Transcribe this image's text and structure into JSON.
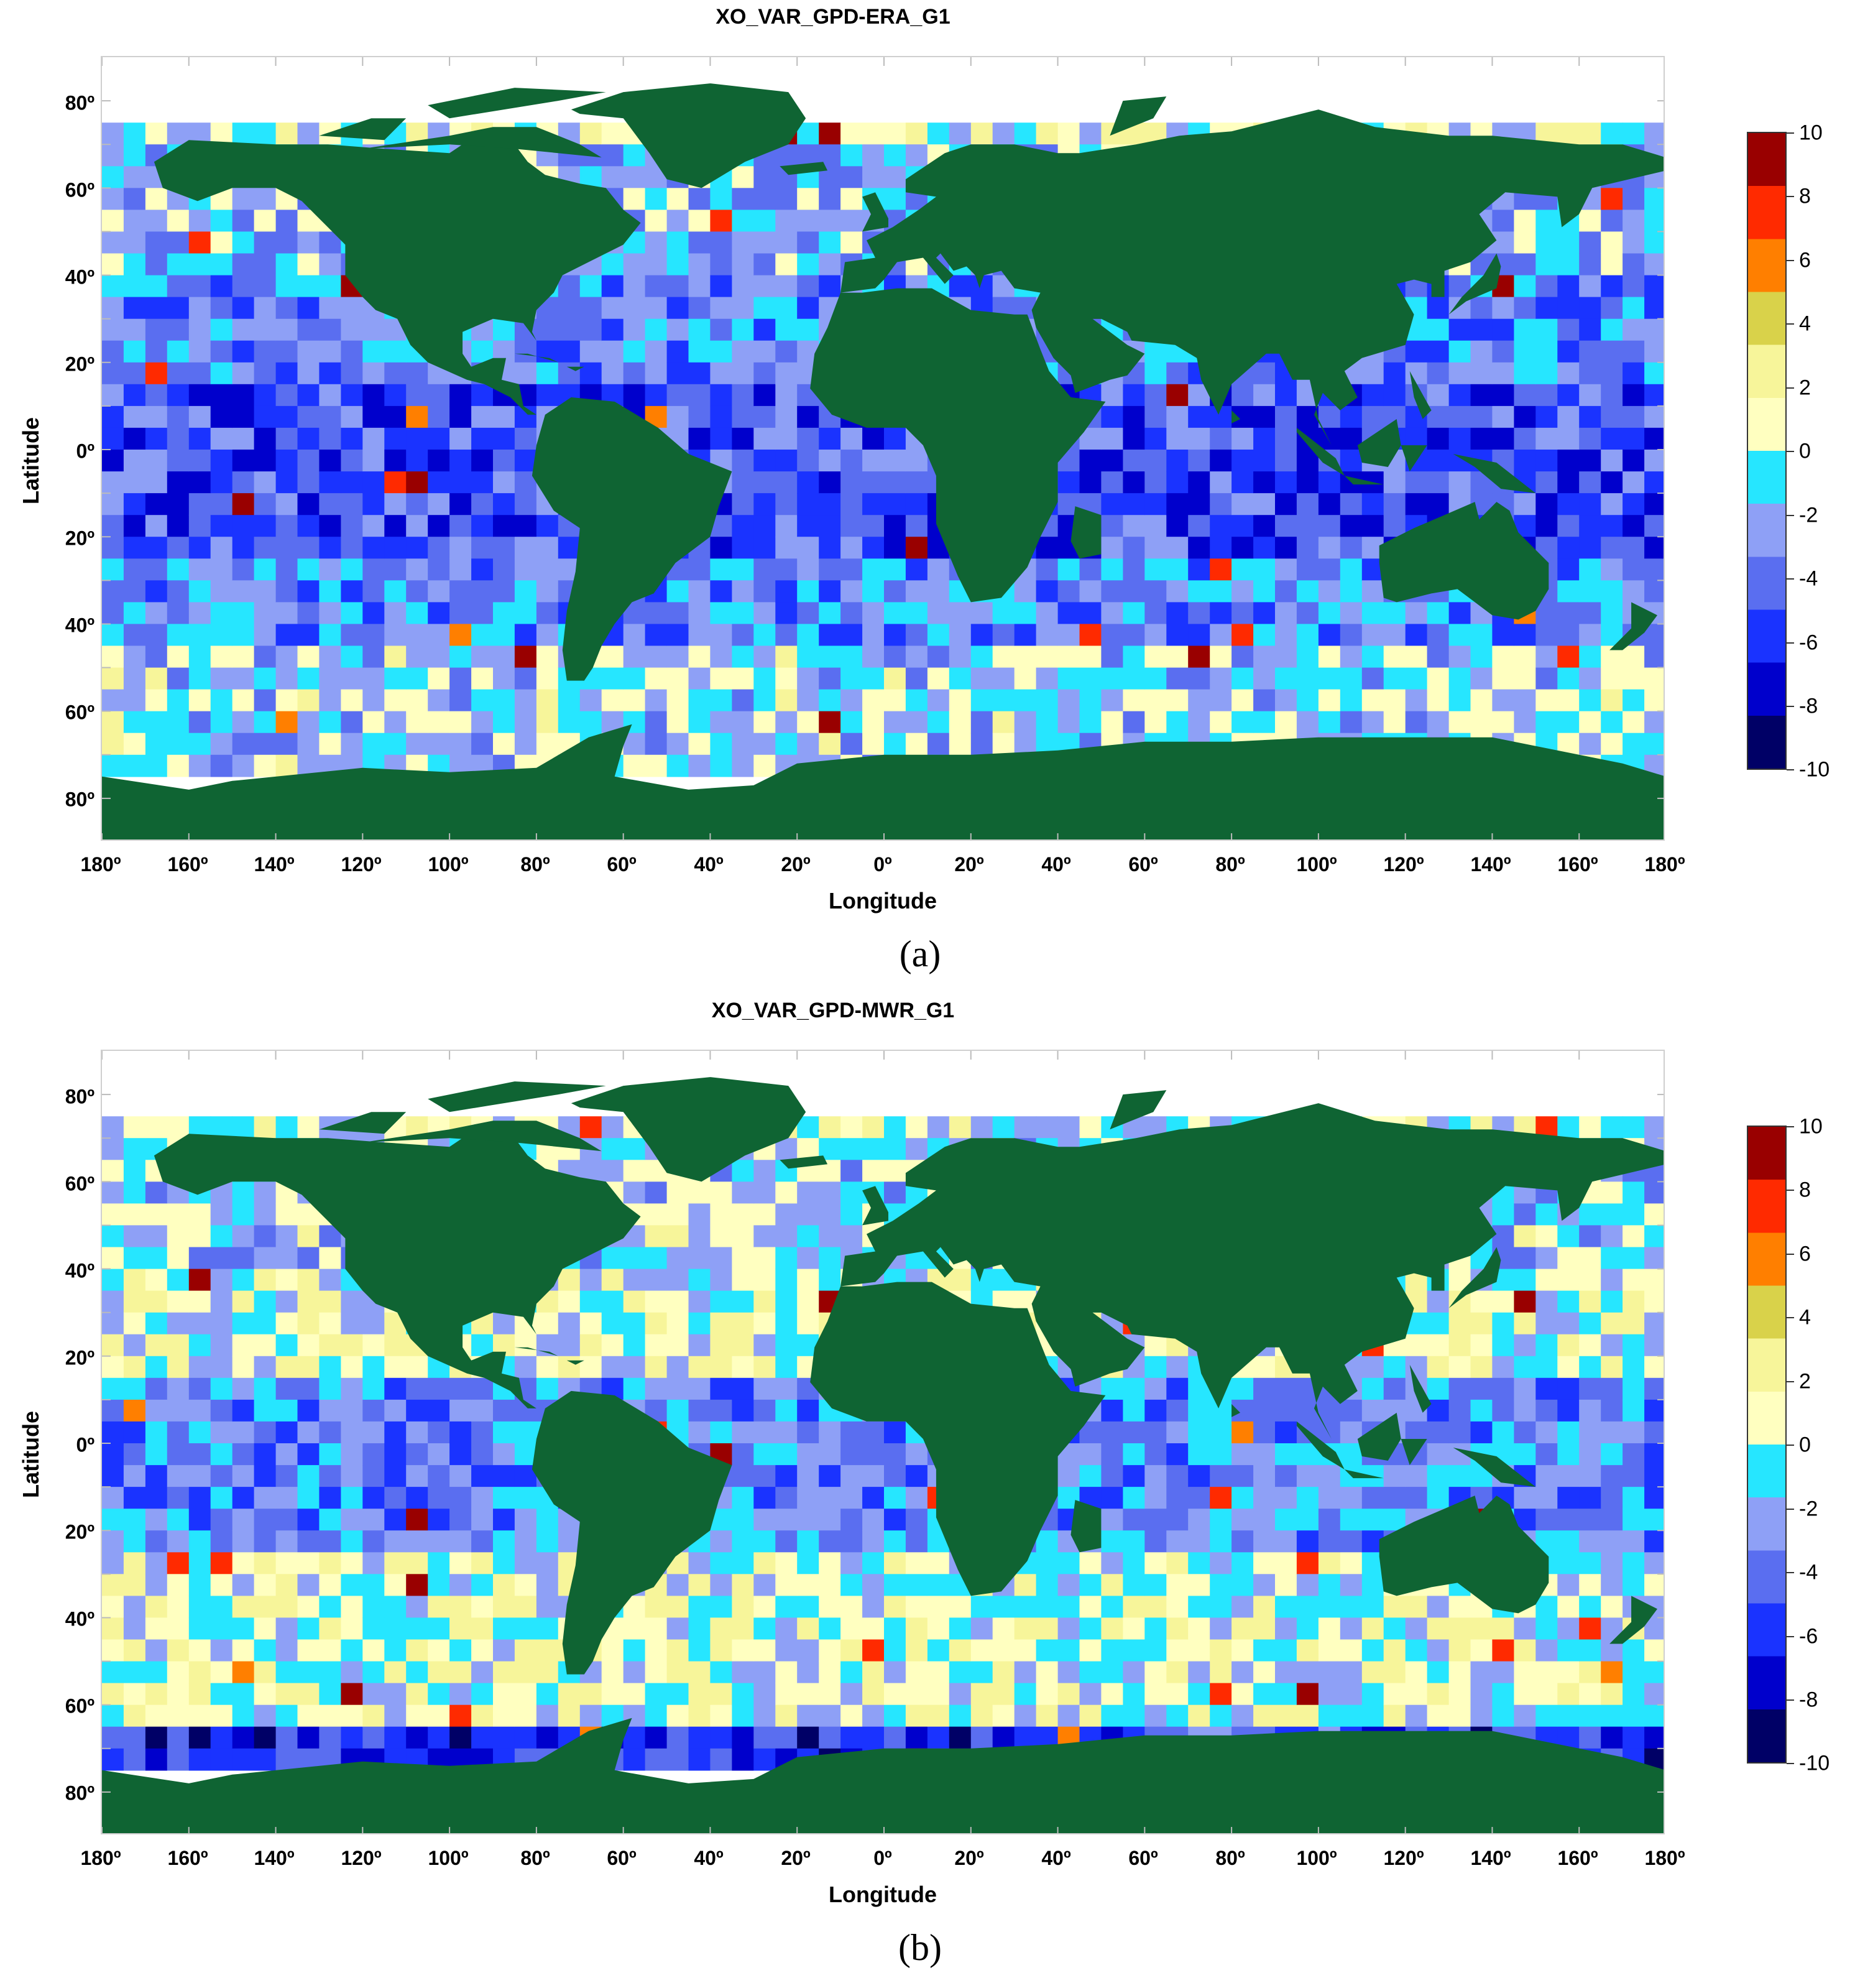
{
  "colors": {
    "land": "#0f6433",
    "ocean_nodata": "#ffffff",
    "colormap": [
      "#000066",
      "#0000cc",
      "#1a33ff",
      "#5a6ef0",
      "#8ea0f6",
      "#26e6ff",
      "#ffffc0",
      "#f7f59a",
      "#d9d24a",
      "#ff7f00",
      "#ff2a00",
      "#990000"
    ]
  },
  "colorbar": {
    "min": -10,
    "max": 10,
    "ticks": [
      "10",
      "8",
      "6",
      "4",
      "2",
      "0",
      "-2",
      "-4",
      "-6",
      "-8",
      "-10"
    ]
  },
  "axes": {
    "y_ticks": [
      "80º",
      "60º",
      "40º",
      "20º",
      "0º",
      "20º",
      "40º",
      "60º",
      "80º"
    ],
    "x_ticks": [
      "180º",
      "160º",
      "140º",
      "120º",
      "100º",
      "80º",
      "60º",
      "40º",
      "20º",
      "0º",
      "20º",
      "40º",
      "60º",
      "80º",
      "100º",
      "120º",
      "140º",
      "160º",
      "180º"
    ],
    "x_title": "Longitude",
    "y_title": "Latitude"
  },
  "chart_data": [
    {
      "type": "heatmap",
      "title": "XO_VAR_GPD-ERA_G1",
      "panel_label": "(a)",
      "xlabel": "Longitude",
      "ylabel": "Latitude",
      "xlim": [
        -180,
        180
      ],
      "ylim": [
        -90,
        90
      ],
      "color_range": [
        -10,
        10
      ],
      "grid_cell_deg": 5,
      "coverage_lat": [
        -75,
        75
      ],
      "regional_values": [
        {
          "lat_band": [
            45,
            75
          ],
          "typical_value": -2
        },
        {
          "lat_band": [
            20,
            45
          ],
          "typical_value": -3
        },
        {
          "lat_band": [
            -20,
            20
          ],
          "typical_value": -5
        },
        {
          "lat_band": [
            -40,
            -20
          ],
          "typical_value": -3
        },
        {
          "lat_band": [
            -75,
            -40
          ],
          "typical_value": -1
        }
      ]
    },
    {
      "type": "heatmap",
      "title": "XO_VAR_GPD-MWR_G1",
      "panel_label": "(b)",
      "xlabel": "Longitude",
      "ylabel": "Latitude",
      "xlim": [
        -180,
        180
      ],
      "ylim": [
        -90,
        90
      ],
      "color_range": [
        -10,
        10
      ],
      "grid_cell_deg": 5,
      "coverage_lat": [
        -75,
        75
      ],
      "regional_values": [
        {
          "lat_band": [
            45,
            75
          ],
          "typical_value": -1
        },
        {
          "lat_band": [
            20,
            45
          ],
          "typical_value": 0
        },
        {
          "lat_band": [
            -20,
            20
          ],
          "typical_value": -3
        },
        {
          "lat_band": [
            -60,
            -20
          ],
          "typical_value": 0
        },
        {
          "lat_band": [
            -75,
            -60
          ],
          "typical_value": -6
        }
      ]
    }
  ]
}
